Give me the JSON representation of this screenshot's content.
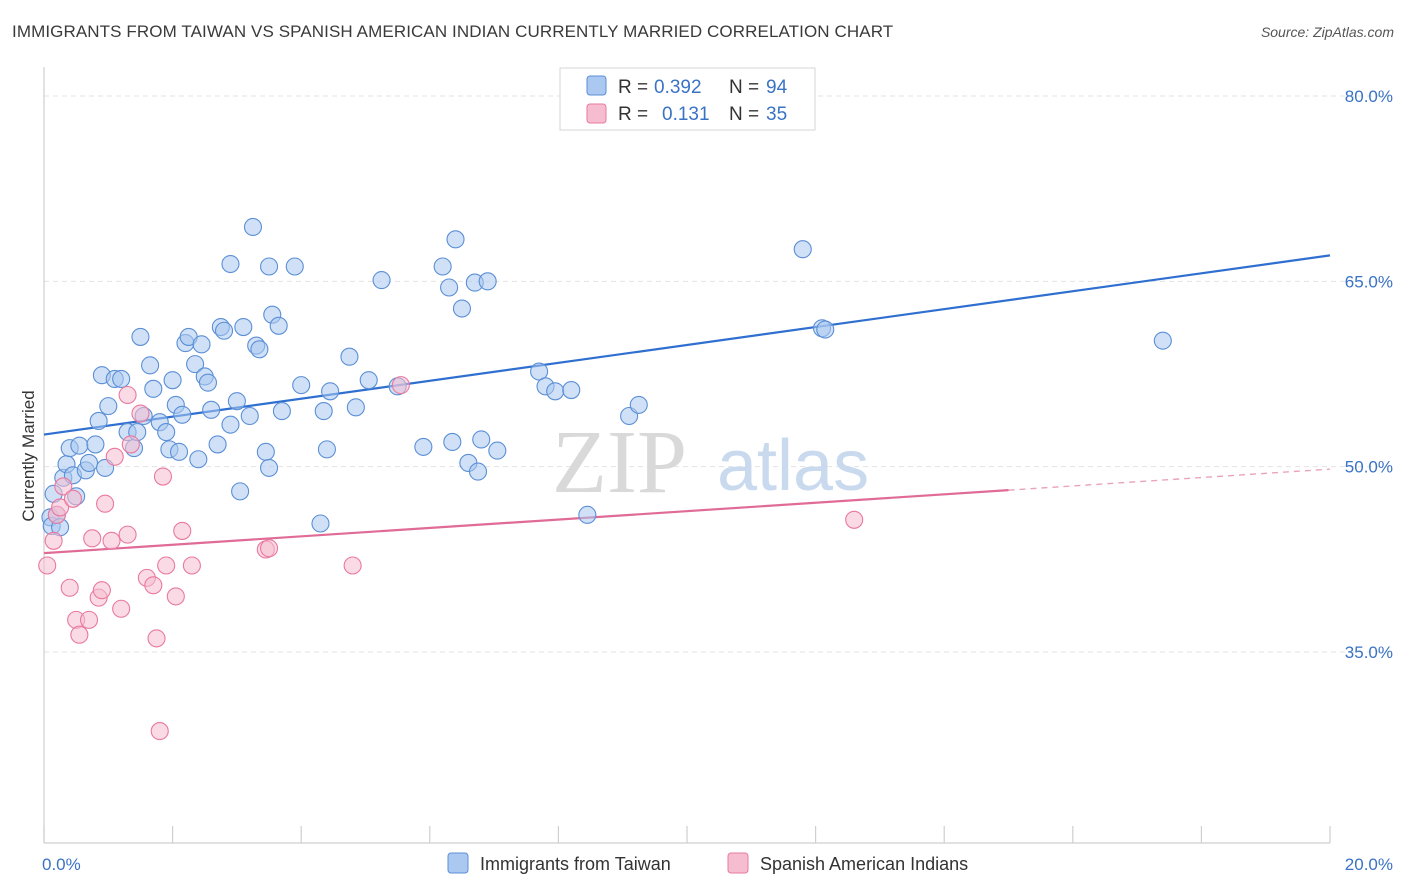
{
  "title": "IMMIGRANTS FROM TAIWAN VS SPANISH AMERICAN INDIAN CURRENTLY MARRIED CORRELATION CHART",
  "source": "Source: ZipAtlas.com",
  "watermark": {
    "zip": "ZIP",
    "atlas": "atlas"
  },
  "colors": {
    "blue": "#5b8fd6",
    "blue_fill": "#aac8f0",
    "pink": "#e9799f",
    "pink_fill": "#f6bdd0",
    "tick": "#3a73c4"
  },
  "legend": {
    "rows": [
      {
        "r_label": "R =",
        "r_value": "0.392",
        "n_label": "N =",
        "n_value": "94"
      },
      {
        "r_label": "R =",
        "r_value": "0.131",
        "n_label": "N =",
        "n_value": "35"
      }
    ]
  },
  "chart_data": {
    "type": "scatter",
    "title": "IMMIGRANTS FROM TAIWAN VS SPANISH AMERICAN INDIAN CURRENTLY MARRIED CORRELATION CHART",
    "xlabel": "",
    "ylabel": "Currently Married",
    "xlim": [
      0,
      20
    ],
    "ylim": [
      20,
      82
    ],
    "x_tick_labels": [
      "0.0%",
      "20.0%"
    ],
    "y_tick_labels": [
      "80.0%",
      "65.0%",
      "50.0%",
      "35.0%"
    ],
    "y_ticks": [
      80,
      65,
      50,
      35
    ],
    "grid": true,
    "legend_position": "top-center",
    "series": [
      {
        "name": "Immigrants from Taiwan",
        "color": "#5b8fd6",
        "r": 0.392,
        "n": 94,
        "trend": {
          "x": [
            0,
            20
          ],
          "y": [
            52.6,
            67.1
          ],
          "extrapolated": false
        },
        "points": [
          [
            0.1,
            45.9
          ],
          [
            0.12,
            45.2
          ],
          [
            0.15,
            47.8
          ],
          [
            0.2,
            46.1
          ],
          [
            0.25,
            45.1
          ],
          [
            0.3,
            49.1
          ],
          [
            0.35,
            50.2
          ],
          [
            0.4,
            51.5
          ],
          [
            0.45,
            49.3
          ],
          [
            0.5,
            47.6
          ],
          [
            0.55,
            51.7
          ],
          [
            0.65,
            49.7
          ],
          [
            0.7,
            50.3
          ],
          [
            0.8,
            51.8
          ],
          [
            0.85,
            53.7
          ],
          [
            0.9,
            57.4
          ],
          [
            0.95,
            49.9
          ],
          [
            1.0,
            54.9
          ],
          [
            1.1,
            57.1
          ],
          [
            1.2,
            57.1
          ],
          [
            1.3,
            52.8
          ],
          [
            1.4,
            51.5
          ],
          [
            1.45,
            52.8
          ],
          [
            1.5,
            60.5
          ],
          [
            1.55,
            54.1
          ],
          [
            1.65,
            58.2
          ],
          [
            1.7,
            56.3
          ],
          [
            1.8,
            53.6
          ],
          [
            1.9,
            52.8
          ],
          [
            1.95,
            51.4
          ],
          [
            2.0,
            57.0
          ],
          [
            2.05,
            55.0
          ],
          [
            2.1,
            51.2
          ],
          [
            2.15,
            54.2
          ],
          [
            2.2,
            60.0
          ],
          [
            2.25,
            60.5
          ],
          [
            2.35,
            58.3
          ],
          [
            2.4,
            50.6
          ],
          [
            2.45,
            59.9
          ],
          [
            2.5,
            57.3
          ],
          [
            2.55,
            56.8
          ],
          [
            2.6,
            54.6
          ],
          [
            2.7,
            51.8
          ],
          [
            2.75,
            61.3
          ],
          [
            2.8,
            61.0
          ],
          [
            2.9,
            53.4
          ],
          [
            2.9,
            66.4
          ],
          [
            3.0,
            55.3
          ],
          [
            3.05,
            48.0
          ],
          [
            3.1,
            61.3
          ],
          [
            3.2,
            54.1
          ],
          [
            3.25,
            69.4
          ],
          [
            3.3,
            59.8
          ],
          [
            3.35,
            59.5
          ],
          [
            3.45,
            51.2
          ],
          [
            3.5,
            49.9
          ],
          [
            3.5,
            66.2
          ],
          [
            3.55,
            62.3
          ],
          [
            3.65,
            61.4
          ],
          [
            3.7,
            54.5
          ],
          [
            3.9,
            66.2
          ],
          [
            4.0,
            56.6
          ],
          [
            4.3,
            45.4
          ],
          [
            4.35,
            54.5
          ],
          [
            4.4,
            51.4
          ],
          [
            4.45,
            56.1
          ],
          [
            4.75,
            58.9
          ],
          [
            4.85,
            54.8
          ],
          [
            5.05,
            57.0
          ],
          [
            5.25,
            65.1
          ],
          [
            5.5,
            56.5
          ],
          [
            5.9,
            51.6
          ],
          [
            6.2,
            66.2
          ],
          [
            6.3,
            64.5
          ],
          [
            6.35,
            52.0
          ],
          [
            6.4,
            68.4
          ],
          [
            6.5,
            62.8
          ],
          [
            6.6,
            50.3
          ],
          [
            6.7,
            64.9
          ],
          [
            6.75,
            49.6
          ],
          [
            6.8,
            52.2
          ],
          [
            6.9,
            65.0
          ],
          [
            7.05,
            51.3
          ],
          [
            7.7,
            57.7
          ],
          [
            7.8,
            56.5
          ],
          [
            7.95,
            56.1
          ],
          [
            8.2,
            56.2
          ],
          [
            8.45,
            46.1
          ],
          [
            9.1,
            54.1
          ],
          [
            9.25,
            55.0
          ],
          [
            11.8,
            67.6
          ],
          [
            12.1,
            61.2
          ],
          [
            12.15,
            61.1
          ],
          [
            17.4,
            60.2
          ]
        ]
      },
      {
        "name": "Spanish American Indians",
        "color": "#e9799f",
        "r": 0.131,
        "n": 35,
        "trend": {
          "x": [
            0,
            15
          ],
          "y": [
            43.0,
            48.1
          ],
          "dashed_to": {
            "x": 20,
            "y": 49.8
          }
        },
        "points": [
          [
            0.05,
            42.0
          ],
          [
            0.15,
            44.0
          ],
          [
            0.2,
            46.1
          ],
          [
            0.25,
            46.7
          ],
          [
            0.3,
            48.4
          ],
          [
            0.4,
            40.2
          ],
          [
            0.45,
            47.4
          ],
          [
            0.5,
            37.6
          ],
          [
            0.55,
            36.4
          ],
          [
            0.7,
            37.6
          ],
          [
            0.75,
            44.2
          ],
          [
            0.85,
            39.4
          ],
          [
            0.9,
            40.0
          ],
          [
            0.95,
            47.0
          ],
          [
            1.05,
            44.0
          ],
          [
            1.1,
            50.8
          ],
          [
            1.2,
            38.5
          ],
          [
            1.3,
            44.5
          ],
          [
            1.35,
            51.8
          ],
          [
            1.5,
            54.3
          ],
          [
            1.6,
            41.0
          ],
          [
            1.7,
            40.4
          ],
          [
            1.75,
            36.1
          ],
          [
            1.8,
            28.6
          ],
          [
            1.85,
            49.2
          ],
          [
            1.9,
            42.0
          ],
          [
            2.05,
            39.5
          ],
          [
            2.15,
            44.8
          ],
          [
            2.3,
            42.0
          ],
          [
            3.45,
            43.3
          ],
          [
            3.5,
            43.4
          ],
          [
            4.8,
            42.0
          ],
          [
            5.55,
            56.6
          ],
          [
            12.6,
            45.7
          ],
          [
            1.3,
            55.8
          ]
        ]
      }
    ]
  },
  "bottom_legend": [
    {
      "label": "Immigrants from Taiwan"
    },
    {
      "label": "Spanish American Indians"
    }
  ]
}
